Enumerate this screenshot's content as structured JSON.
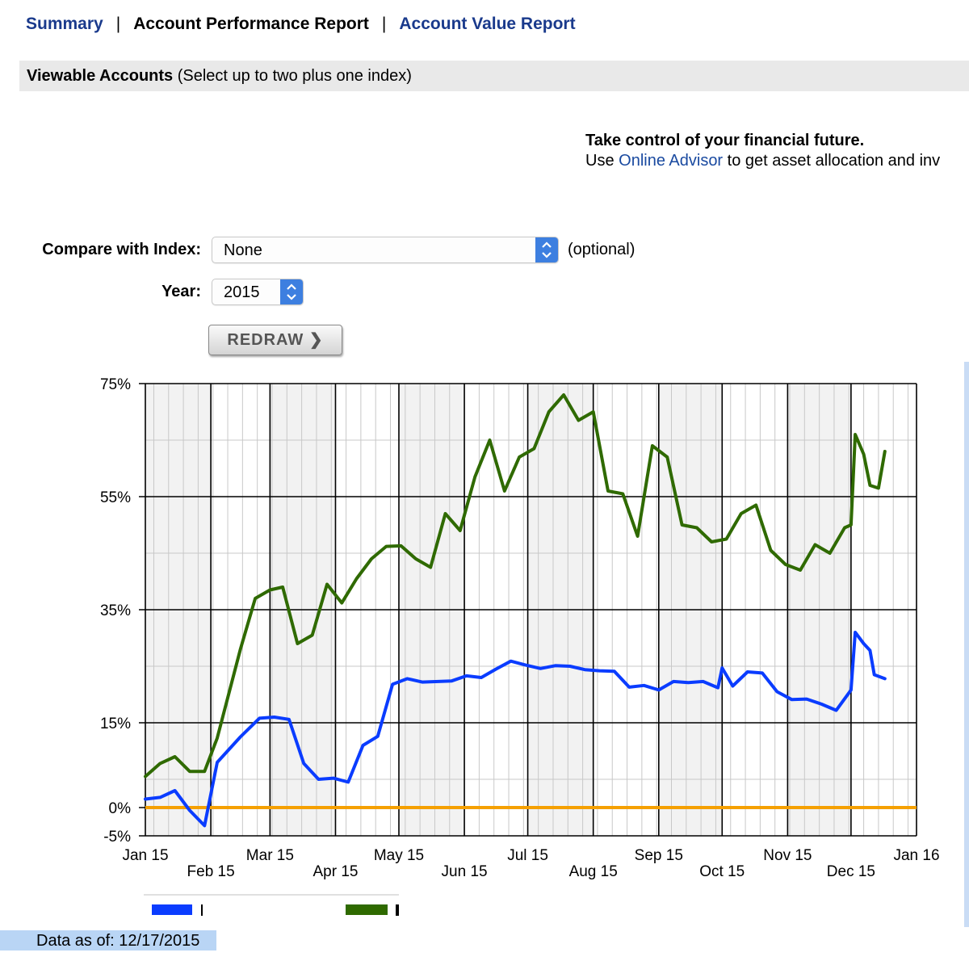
{
  "nav": {
    "summary": "Summary",
    "performance": "Account Performance Report",
    "value": "Account Value Report",
    "separator": "|"
  },
  "viewable": {
    "title": "Viewable Accounts",
    "hint": "(Select up to two plus one index)"
  },
  "promo": {
    "headline": "Take control of your financial future.",
    "prefix": "Use",
    "link": "Online Advisor",
    "suffix": "to get asset allocation and inv"
  },
  "controls": {
    "index_label": "Compare with Index:",
    "index_value": "None",
    "optional": "(optional)",
    "year_label": "Year:",
    "year_value": "2015",
    "redraw": "REDRAW"
  },
  "footer": {
    "data_as_of": "Data as of: 12/17/2015"
  },
  "colors": {
    "series_blue": "#0a3cff",
    "series_green": "#2f6a00",
    "zero_line": "#f5a000",
    "accent": "#3d7fe0"
  },
  "chart_data": {
    "type": "line",
    "y_tick_labels": [
      "75%",
      "55%",
      "35%",
      "15%",
      "0%",
      "-5%"
    ],
    "y_ticks": [
      75,
      55,
      35,
      15,
      0,
      -5
    ],
    "ylim": [
      -5,
      75
    ],
    "x_tick_labels_top": [
      "Jan 15",
      "Mar 15",
      "May 15",
      "Jul 15",
      "Sep 15",
      "Nov 15",
      "Jan 16"
    ],
    "x_tick_labels_bottom": [
      "Feb 15",
      "Apr 15",
      "Jun 15",
      "Aug 15",
      "Oct 15",
      "Dec 15"
    ],
    "x_ticks_top": [
      "2015-01-01",
      "2015-03-01",
      "2015-05-01",
      "2015-07-01",
      "2015-09-01",
      "2015-11-01",
      "2016-01-01"
    ],
    "x_ticks_bottom": [
      "2015-02-01",
      "2015-04-01",
      "2015-06-01",
      "2015-08-01",
      "2015-10-01",
      "2015-12-01"
    ],
    "xlim": [
      "2015-01-01",
      "2016-01-01"
    ],
    "grid": true,
    "reference_line": 0,
    "series": [
      {
        "color": "#0a3cff",
        "points": [
          [
            "2015-01-01",
            1.5
          ],
          [
            "2015-01-08",
            1.8
          ],
          [
            "2015-01-15",
            3.0
          ],
          [
            "2015-01-22",
            -0.5
          ],
          [
            "2015-01-29",
            -3.2
          ],
          [
            "2015-02-04",
            8.0
          ],
          [
            "2015-02-15",
            12.5
          ],
          [
            "2015-02-24",
            15.8
          ],
          [
            "2015-03-03",
            16.0
          ],
          [
            "2015-03-10",
            15.6
          ],
          [
            "2015-03-17",
            7.8
          ],
          [
            "2015-03-24",
            5.0
          ],
          [
            "2015-03-31",
            5.2
          ],
          [
            "2015-04-07",
            4.5
          ],
          [
            "2015-04-14",
            11.0
          ],
          [
            "2015-04-21",
            12.6
          ],
          [
            "2015-04-28",
            21.8
          ],
          [
            "2015-05-05",
            22.8
          ],
          [
            "2015-05-12",
            22.2
          ],
          [
            "2015-05-26",
            22.4
          ],
          [
            "2015-06-02",
            23.3
          ],
          [
            "2015-06-09",
            23.0
          ],
          [
            "2015-06-16",
            24.5
          ],
          [
            "2015-06-23",
            25.9
          ],
          [
            "2015-06-30",
            25.2
          ],
          [
            "2015-07-07",
            24.6
          ],
          [
            "2015-07-14",
            25.1
          ],
          [
            "2015-07-21",
            25.0
          ],
          [
            "2015-07-28",
            24.4
          ],
          [
            "2015-08-04",
            24.2
          ],
          [
            "2015-08-11",
            24.1
          ],
          [
            "2015-08-18",
            21.3
          ],
          [
            "2015-08-25",
            21.6
          ],
          [
            "2015-09-01",
            20.8
          ],
          [
            "2015-09-08",
            22.3
          ],
          [
            "2015-09-15",
            22.1
          ],
          [
            "2015-09-22",
            22.3
          ],
          [
            "2015-09-29",
            21.2
          ],
          [
            "2015-10-01",
            24.7
          ],
          [
            "2015-10-06",
            21.5
          ],
          [
            "2015-10-13",
            24.0
          ],
          [
            "2015-10-20",
            23.8
          ],
          [
            "2015-10-27",
            20.5
          ],
          [
            "2015-11-03",
            19.1
          ],
          [
            "2015-11-10",
            19.2
          ],
          [
            "2015-11-17",
            18.3
          ],
          [
            "2015-11-24",
            17.2
          ],
          [
            "2015-12-01",
            20.8
          ],
          [
            "2015-12-03",
            31.0
          ],
          [
            "2015-12-07",
            29.0
          ],
          [
            "2015-12-10",
            27.8
          ],
          [
            "2015-12-12",
            23.5
          ],
          [
            "2015-12-17",
            22.8
          ]
        ]
      },
      {
        "color": "#2f6a00",
        "points": [
          [
            "2015-01-01",
            5.5
          ],
          [
            "2015-01-08",
            7.8
          ],
          [
            "2015-01-15",
            9.0
          ],
          [
            "2015-01-22",
            6.4
          ],
          [
            "2015-01-29",
            6.4
          ],
          [
            "2015-02-04",
            12.3
          ],
          [
            "2015-02-15",
            28.0
          ],
          [
            "2015-02-22",
            37.0
          ],
          [
            "2015-03-01",
            38.5
          ],
          [
            "2015-03-07",
            39.0
          ],
          [
            "2015-03-14",
            29.0
          ],
          [
            "2015-03-21",
            30.5
          ],
          [
            "2015-03-28",
            39.5
          ],
          [
            "2015-04-04",
            36.2
          ],
          [
            "2015-04-11",
            40.5
          ],
          [
            "2015-04-18",
            44.0
          ],
          [
            "2015-04-25",
            46.2
          ],
          [
            "2015-05-02",
            46.3
          ],
          [
            "2015-05-09",
            44.0
          ],
          [
            "2015-05-16",
            42.5
          ],
          [
            "2015-05-23",
            52.0
          ],
          [
            "2015-05-30",
            49.0
          ],
          [
            "2015-06-06",
            58.5
          ],
          [
            "2015-06-13",
            65.0
          ],
          [
            "2015-06-20",
            56.0
          ],
          [
            "2015-06-27",
            62.0
          ],
          [
            "2015-07-04",
            63.5
          ],
          [
            "2015-07-11",
            70.0
          ],
          [
            "2015-07-18",
            73.0
          ],
          [
            "2015-07-25",
            68.5
          ],
          [
            "2015-08-01",
            70.0
          ],
          [
            "2015-08-08",
            56.0
          ],
          [
            "2015-08-15",
            55.5
          ],
          [
            "2015-08-22",
            48.0
          ],
          [
            "2015-08-29",
            64.0
          ],
          [
            "2015-09-05",
            62.0
          ],
          [
            "2015-09-12",
            50.0
          ],
          [
            "2015-09-19",
            49.5
          ],
          [
            "2015-09-26",
            47.0
          ],
          [
            "2015-10-03",
            47.5
          ],
          [
            "2015-10-10",
            52.0
          ],
          [
            "2015-10-17",
            53.5
          ],
          [
            "2015-10-24",
            45.5
          ],
          [
            "2015-10-31",
            43.0
          ],
          [
            "2015-11-07",
            42.0
          ],
          [
            "2015-11-14",
            46.5
          ],
          [
            "2015-11-21",
            45.0
          ],
          [
            "2015-11-28",
            49.5
          ],
          [
            "2015-12-01",
            50.0
          ],
          [
            "2015-12-03",
            66.0
          ],
          [
            "2015-12-07",
            62.5
          ],
          [
            "2015-12-10",
            57.0
          ],
          [
            "2015-12-14",
            56.5
          ],
          [
            "2015-12-17",
            63.0
          ]
        ]
      }
    ]
  }
}
